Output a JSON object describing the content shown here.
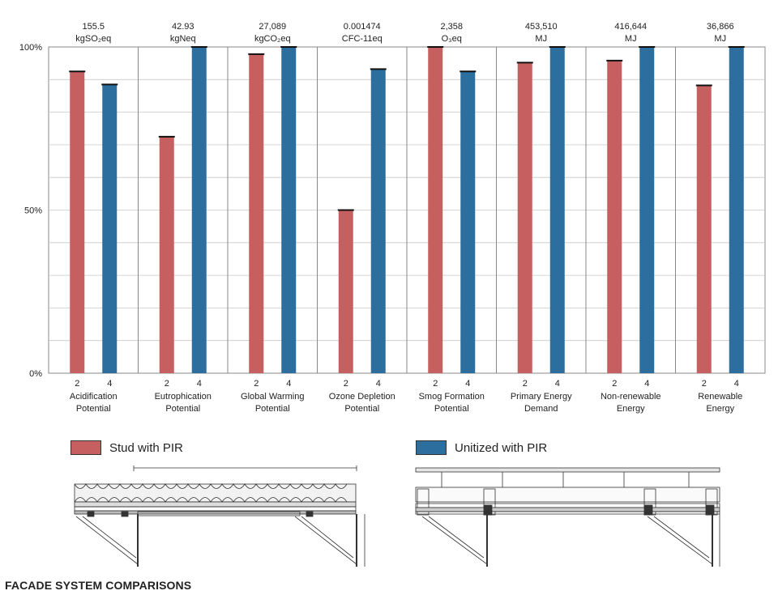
{
  "page": {
    "title": "FACADE SYSTEM COMPARISONS"
  },
  "legend": [
    {
      "label": "Stud with PIR",
      "color": "#c65f5f"
    },
    {
      "label": "Unitized with PIR",
      "color": "#2c6e9e"
    }
  ],
  "chart_data": {
    "type": "bar",
    "y_axis": {
      "ticks": [
        "0%",
        "50%",
        "100%"
      ],
      "range": [
        0,
        100
      ]
    },
    "series_colors": [
      "#c65f5f",
      "#2c6e9e"
    ],
    "categories": [
      {
        "label_line1": "Acidification",
        "label_line2": "Potential",
        "total": "155.5",
        "unit": "kgSO₂eq",
        "options": [
          "2",
          "4"
        ],
        "values": [
          92.5,
          88.5
        ]
      },
      {
        "label_line1": "Eutrophication",
        "label_line2": "Potential",
        "total": "42.93",
        "unit": "kgNeq",
        "options": [
          "2",
          "4"
        ],
        "values": [
          72.5,
          100
        ]
      },
      {
        "label_line1": "Global Warming",
        "label_line2": "Potential",
        "total": "27,089",
        "unit": "kgCO₂eq",
        "options": [
          "2",
          "4"
        ],
        "values": [
          97.8,
          100
        ]
      },
      {
        "label_line1": "Ozone Depletion",
        "label_line2": "Potential",
        "total": "0.001474",
        "unit": "CFC-11eq",
        "options": [
          "2",
          "4"
        ],
        "values": [
          50,
          93.2
        ]
      },
      {
        "label_line1": "Smog Formation",
        "label_line2": "Potential",
        "total": "2,358",
        "unit": "O₃eq",
        "options": [
          "2",
          "4"
        ],
        "values": [
          100,
          92.5
        ]
      },
      {
        "label_line1": "Primary Energy",
        "label_line2": "Demand",
        "total": "453,510",
        "unit": "MJ",
        "options": [
          "2",
          "4"
        ],
        "values": [
          95.2,
          100
        ]
      },
      {
        "label_line1": "Non-renewable",
        "label_line2": "Energy",
        "total": "416,644",
        "unit": "MJ",
        "options": [
          "2",
          "4"
        ],
        "values": [
          95.8,
          100
        ]
      },
      {
        "label_line1": "Renewable",
        "label_line2": "Energy",
        "total": "36,866",
        "unit": "MJ",
        "options": [
          "2",
          "4"
        ],
        "values": [
          88.2,
          100
        ]
      }
    ]
  }
}
